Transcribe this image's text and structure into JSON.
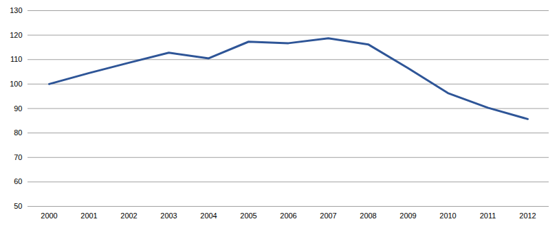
{
  "chart_data": {
    "type": "line",
    "categories": [
      "2000",
      "2001",
      "2002",
      "2003",
      "2004",
      "2005",
      "2006",
      "2007",
      "2008",
      "2009",
      "2010",
      "2011",
      "2012"
    ],
    "values": [
      100,
      104.5,
      108.7,
      112.8,
      110.5,
      117.3,
      116.7,
      118.7,
      116.2,
      106.5,
      96.3,
      90.3,
      85.7
    ],
    "color": "#2e5597",
    "ylim": [
      50,
      130
    ],
    "yticks": [
      50,
      60,
      70,
      80,
      90,
      100,
      110,
      120,
      130
    ],
    "grid": true
  }
}
